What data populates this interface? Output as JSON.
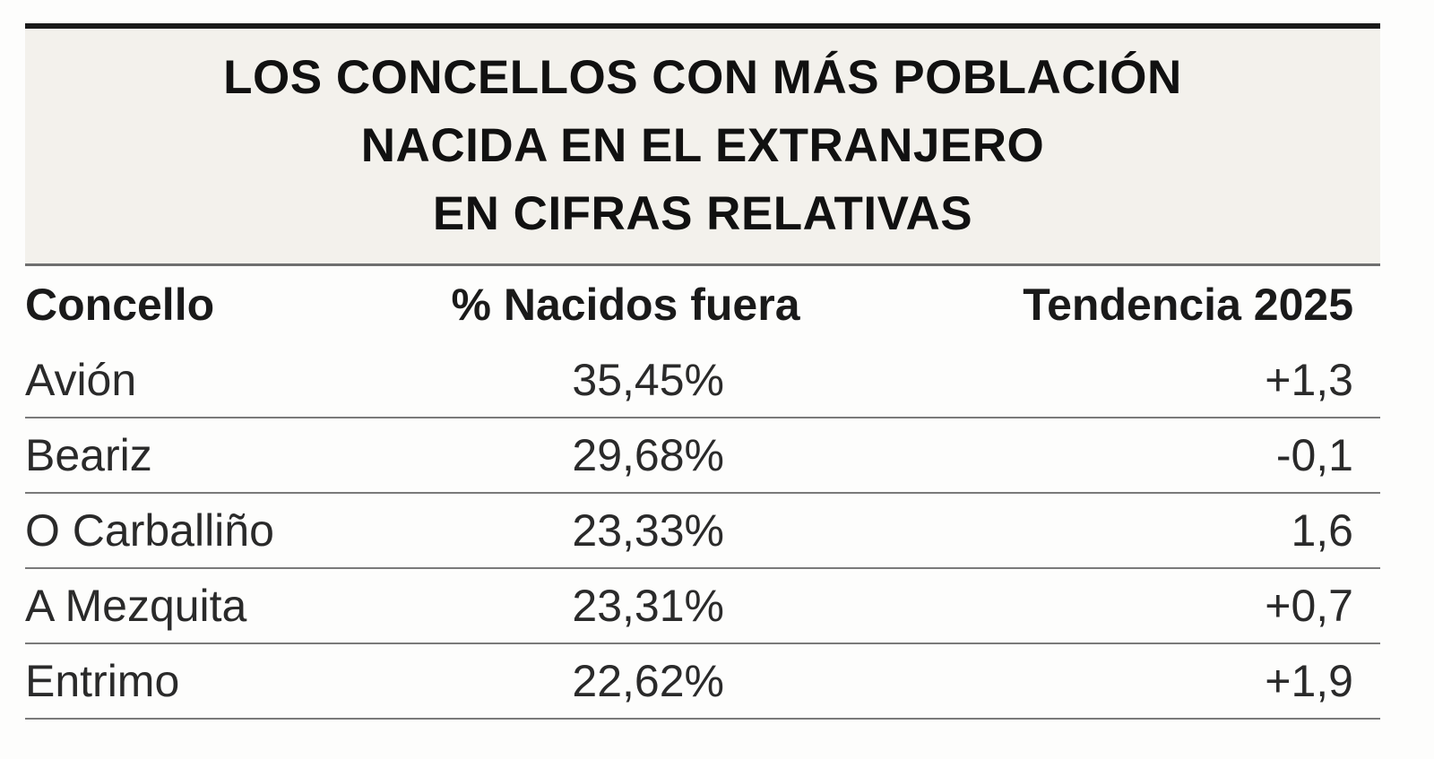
{
  "title": {
    "lines": [
      "LOS CONCELLOS CON MÁS POBLACIÓN",
      "NACIDA EN EL EXTRANJERO",
      "EN CIFRAS RELATIVAS"
    ]
  },
  "table": {
    "headers": [
      "Concello",
      "% Nacidos fuera",
      "Tendencia 2025"
    ],
    "rows": [
      {
        "concello": "Avión",
        "pct": "35,45%",
        "tendencia": "+1,3"
      },
      {
        "concello": "Beariz",
        "pct": "29,68%",
        "tendencia": "-0,1"
      },
      {
        "concello": "O Carballiño",
        "pct": "23,33%",
        "tendencia": "1,6"
      },
      {
        "concello": "A Mezquita",
        "pct": "23,31%",
        "tendencia": "+0,7"
      },
      {
        "concello": "Entrimo",
        "pct": "22,62%",
        "tendencia": "+1,9"
      }
    ]
  },
  "colors": {
    "header_bg": "#f3f1ec",
    "text": "#1a1a1a",
    "rule": "#1a1a1a"
  }
}
